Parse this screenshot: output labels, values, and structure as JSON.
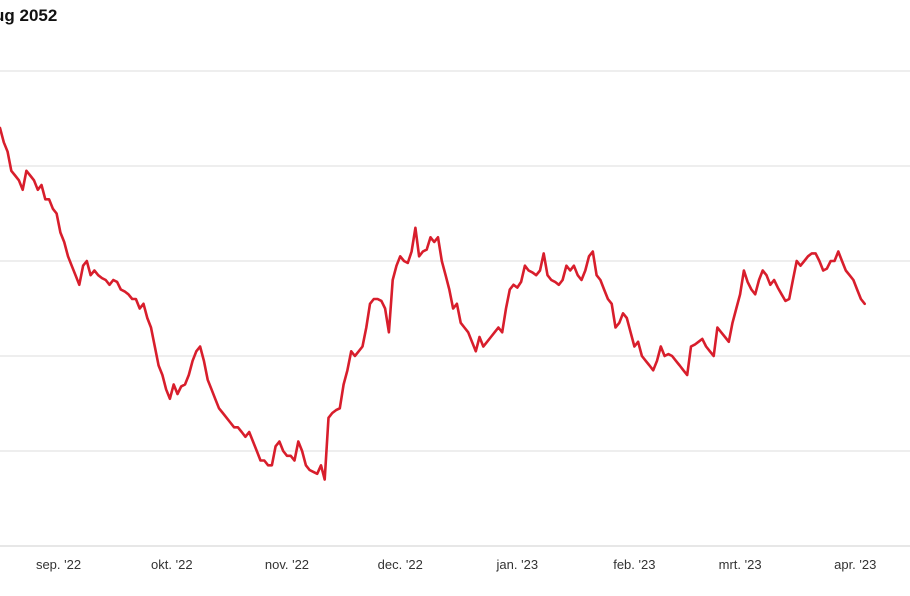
{
  "title": "ug 2052",
  "chart_data": {
    "type": "line",
    "title": "ug 2052",
    "xlabel": "",
    "ylabel": "",
    "grid": true,
    "colors": {
      "line": "#d81e2c",
      "grid": "#dcdcdc",
      "axis": "#cfcfcf"
    },
    "x_ticks": [
      {
        "label": "sep. '22",
        "value": 15.5
      },
      {
        "label": "okt. '22",
        "value": 45.5
      },
      {
        "label": "nov. '22",
        "value": 76
      },
      {
        "label": "dec. '22",
        "value": 106
      },
      {
        "label": "jan. '23",
        "value": 137
      },
      {
        "label": "feb. '23",
        "value": 168
      },
      {
        "label": "mrt. '23",
        "value": 196
      },
      {
        "label": "apr. '23",
        "value": 226.5
      }
    ],
    "xlim": [
      0,
      241
    ],
    "ylim": [
      0,
      5
    ],
    "y_gridlines": [
      1,
      2,
      3,
      4,
      5
    ],
    "series": [
      {
        "points": [
          [
            0,
            4.4
          ],
          [
            1,
            4.25
          ],
          [
            2,
            4.15
          ],
          [
            3,
            3.95
          ],
          [
            4,
            3.9
          ],
          [
            5,
            3.85
          ],
          [
            6,
            3.75
          ],
          [
            7,
            3.95
          ],
          [
            8,
            3.9
          ],
          [
            9,
            3.85
          ],
          [
            10,
            3.75
          ],
          [
            11,
            3.8
          ],
          [
            12,
            3.65
          ],
          [
            13,
            3.65
          ],
          [
            14,
            3.55
          ],
          [
            15,
            3.5
          ],
          [
            16,
            3.3
          ],
          [
            17,
            3.2
          ],
          [
            18,
            3.05
          ],
          [
            19,
            2.95
          ],
          [
            20,
            2.85
          ],
          [
            21,
            2.75
          ],
          [
            22,
            2.95
          ],
          [
            23,
            3.0
          ],
          [
            24,
            2.85
          ],
          [
            25,
            2.9
          ],
          [
            26,
            2.85
          ],
          [
            27,
            2.82
          ],
          [
            28,
            2.8
          ],
          [
            29,
            2.75
          ],
          [
            30,
            2.8
          ],
          [
            31,
            2.78
          ],
          [
            32,
            2.7
          ],
          [
            33,
            2.68
          ],
          [
            34,
            2.65
          ],
          [
            35,
            2.6
          ],
          [
            36,
            2.6
          ],
          [
            37,
            2.5
          ],
          [
            38,
            2.55
          ],
          [
            39,
            2.4
          ],
          [
            40,
            2.3
          ],
          [
            41,
            2.1
          ],
          [
            42,
            1.9
          ],
          [
            43,
            1.8
          ],
          [
            44,
            1.65
          ],
          [
            45,
            1.55
          ],
          [
            46,
            1.7
          ],
          [
            47,
            1.6
          ],
          [
            48,
            1.68
          ],
          [
            49,
            1.7
          ],
          [
            50,
            1.8
          ],
          [
            51,
            1.95
          ],
          [
            52,
            2.05
          ],
          [
            53,
            2.1
          ],
          [
            54,
            1.95
          ],
          [
            55,
            1.75
          ],
          [
            56,
            1.65
          ],
          [
            57,
            1.55
          ],
          [
            58,
            1.45
          ],
          [
            59,
            1.4
          ],
          [
            60,
            1.35
          ],
          [
            61,
            1.3
          ],
          [
            62,
            1.25
          ],
          [
            63,
            1.25
          ],
          [
            64,
            1.2
          ],
          [
            65,
            1.15
          ],
          [
            66,
            1.2
          ],
          [
            67,
            1.1
          ],
          [
            68,
            1.0
          ],
          [
            69,
            0.9
          ],
          [
            70,
            0.9
          ],
          [
            71,
            0.85
          ],
          [
            72,
            0.85
          ],
          [
            73,
            1.05
          ],
          [
            74,
            1.1
          ],
          [
            75,
            1.0
          ],
          [
            76,
            0.95
          ],
          [
            77,
            0.95
          ],
          [
            78,
            0.9
          ],
          [
            79,
            1.1
          ],
          [
            80,
            1.0
          ],
          [
            81,
            0.85
          ],
          [
            82,
            0.8
          ],
          [
            83,
            0.78
          ],
          [
            84,
            0.76
          ],
          [
            85,
            0.85
          ],
          [
            86,
            0.7
          ],
          [
            87,
            1.35
          ],
          [
            88,
            1.4
          ],
          [
            89,
            1.43
          ],
          [
            90,
            1.45
          ],
          [
            91,
            1.7
          ],
          [
            92,
            1.85
          ],
          [
            93,
            2.05
          ],
          [
            94,
            2.0
          ],
          [
            95,
            2.05
          ],
          [
            96,
            2.1
          ],
          [
            97,
            2.3
          ],
          [
            98,
            2.55
          ],
          [
            99,
            2.6
          ],
          [
            100,
            2.6
          ],
          [
            101,
            2.58
          ],
          [
            102,
            2.5
          ],
          [
            103,
            2.25
          ],
          [
            104,
            2.8
          ],
          [
            105,
            2.95
          ],
          [
            106,
            3.05
          ],
          [
            107,
            3.0
          ],
          [
            108,
            2.98
          ],
          [
            109,
            3.1
          ],
          [
            110,
            3.35
          ],
          [
            111,
            3.05
          ],
          [
            112,
            3.1
          ],
          [
            113,
            3.12
          ],
          [
            114,
            3.25
          ],
          [
            115,
            3.2
          ],
          [
            116,
            3.25
          ],
          [
            117,
            3.0
          ],
          [
            118,
            2.85
          ],
          [
            119,
            2.7
          ],
          [
            120,
            2.5
          ],
          [
            121,
            2.55
          ],
          [
            122,
            2.35
          ],
          [
            123,
            2.3
          ],
          [
            124,
            2.25
          ],
          [
            125,
            2.15
          ],
          [
            126,
            2.05
          ],
          [
            127,
            2.2
          ],
          [
            128,
            2.1
          ],
          [
            129,
            2.15
          ],
          [
            130,
            2.2
          ],
          [
            131,
            2.25
          ],
          [
            132,
            2.3
          ],
          [
            133,
            2.25
          ],
          [
            134,
            2.5
          ],
          [
            135,
            2.7
          ],
          [
            136,
            2.75
          ],
          [
            137,
            2.72
          ],
          [
            138,
            2.78
          ],
          [
            139,
            2.95
          ],
          [
            140,
            2.9
          ],
          [
            141,
            2.88
          ],
          [
            142,
            2.85
          ],
          [
            143,
            2.9
          ],
          [
            144,
            3.08
          ],
          [
            145,
            2.85
          ],
          [
            146,
            2.8
          ],
          [
            147,
            2.78
          ],
          [
            148,
            2.75
          ],
          [
            149,
            2.8
          ],
          [
            150,
            2.95
          ],
          [
            151,
            2.9
          ],
          [
            152,
            2.95
          ],
          [
            153,
            2.85
          ],
          [
            154,
            2.8
          ],
          [
            155,
            2.9
          ],
          [
            156,
            3.05
          ],
          [
            157,
            3.1
          ],
          [
            158,
            2.85
          ],
          [
            159,
            2.8
          ],
          [
            160,
            2.7
          ],
          [
            161,
            2.6
          ],
          [
            162,
            2.55
          ],
          [
            163,
            2.3
          ],
          [
            164,
            2.35
          ],
          [
            165,
            2.45
          ],
          [
            166,
            2.4
          ],
          [
            167,
            2.25
          ],
          [
            168,
            2.1
          ],
          [
            169,
            2.15
          ],
          [
            170,
            2.0
          ],
          [
            171,
            1.95
          ],
          [
            172,
            1.9
          ],
          [
            173,
            1.85
          ],
          [
            174,
            1.95
          ],
          [
            175,
            2.1
          ],
          [
            176,
            2.0
          ],
          [
            177,
            2.02
          ],
          [
            178,
            2.0
          ],
          [
            179,
            1.95
          ],
          [
            180,
            1.9
          ],
          [
            181,
            1.85
          ],
          [
            182,
            1.8
          ],
          [
            183,
            2.1
          ],
          [
            184,
            2.12
          ],
          [
            185,
            2.15
          ],
          [
            186,
            2.18
          ],
          [
            187,
            2.1
          ],
          [
            188,
            2.05
          ],
          [
            189,
            2.0
          ],
          [
            190,
            2.3
          ],
          [
            191,
            2.25
          ],
          [
            192,
            2.2
          ],
          [
            193,
            2.15
          ],
          [
            194,
            2.35
          ],
          [
            195,
            2.5
          ],
          [
            196,
            2.65
          ],
          [
            197,
            2.9
          ],
          [
            198,
            2.78
          ],
          [
            199,
            2.7
          ],
          [
            200,
            2.65
          ],
          [
            201,
            2.8
          ],
          [
            202,
            2.9
          ],
          [
            203,
            2.85
          ],
          [
            204,
            2.75
          ],
          [
            205,
            2.8
          ],
          [
            206,
            2.72
          ],
          [
            207,
            2.65
          ],
          [
            208,
            2.58
          ],
          [
            209,
            2.6
          ],
          [
            210,
            2.8
          ],
          [
            211,
            3.0
          ],
          [
            212,
            2.95
          ],
          [
            213,
            3.0
          ],
          [
            214,
            3.05
          ],
          [
            215,
            3.08
          ],
          [
            216,
            3.08
          ],
          [
            217,
            3.0
          ],
          [
            218,
            2.9
          ],
          [
            219,
            2.92
          ],
          [
            220,
            3.0
          ],
          [
            221,
            3.0
          ],
          [
            222,
            3.1
          ],
          [
            223,
            3.0
          ],
          [
            224,
            2.9
          ],
          [
            225,
            2.85
          ],
          [
            226,
            2.8
          ],
          [
            227,
            2.7
          ],
          [
            228,
            2.6
          ],
          [
            229,
            2.55
          ]
        ]
      }
    ]
  }
}
